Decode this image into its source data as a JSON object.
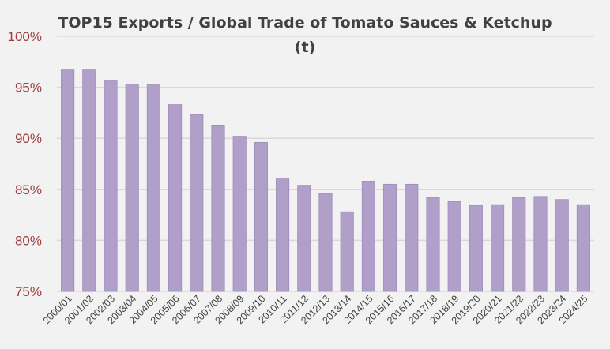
{
  "chart_data": {
    "type": "bar",
    "title": "TOP15 Exports / Global Trade of Tomato  Sauces & Ketchup",
    "subtitle": "(t)",
    "xlabel": "",
    "ylabel": "",
    "ylim": [
      75,
      100
    ],
    "yticks": [
      75,
      80,
      85,
      90,
      95,
      100
    ],
    "ytick_labels": [
      "75%",
      "80%",
      "85%",
      "90%",
      "95%",
      "100%"
    ],
    "grid": true,
    "legend": "none",
    "bar_color": "#b09fc9",
    "tick_label_color": "#a23b3b",
    "categories": [
      "2000/01",
      "2001/02",
      "2002/03",
      "2003/04",
      "2004/05",
      "2005/06",
      "2006/07",
      "2007/08",
      "2008/09",
      "2009/10",
      "2010/11",
      "2011/12",
      "2012/13",
      "2013/14",
      "2014/15",
      "2015/16",
      "2016/17",
      "2017/18",
      "2018/19",
      "2019/20",
      "2020/21",
      "2021/22",
      "2022/23",
      "2023/24",
      "2024/25"
    ],
    "values": [
      96.7,
      96.7,
      95.7,
      95.3,
      95.3,
      93.3,
      92.3,
      91.3,
      90.2,
      89.6,
      86.1,
      85.4,
      84.6,
      82.8,
      85.8,
      85.5,
      85.5,
      84.2,
      83.8,
      83.4,
      83.5,
      84.2,
      84.3,
      84.0,
      83.5
    ]
  }
}
